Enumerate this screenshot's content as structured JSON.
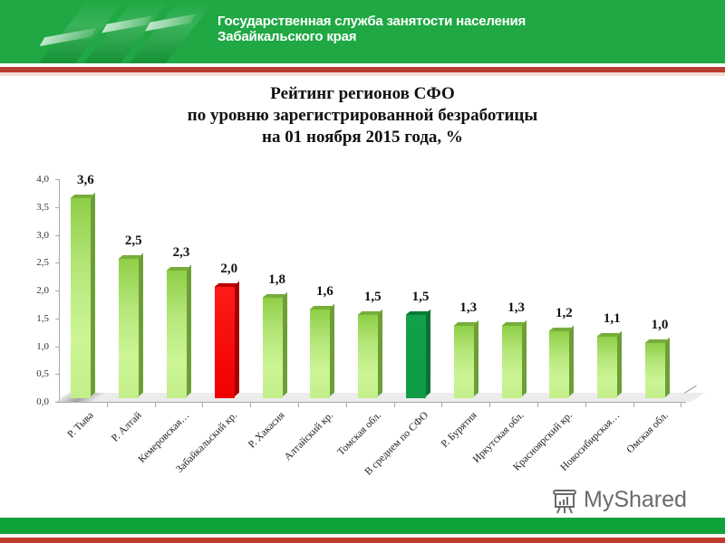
{
  "header": {
    "org_line1": "Государственная служба занятости населения",
    "org_line2": "Забайкальского края",
    "colors": {
      "green": "#1fa843",
      "red": "#b73c32",
      "white": "#ffffff"
    }
  },
  "title": {
    "line1": "Рейтинг регионов СФО",
    "line2": "по уровню зарегистрированной безработицы",
    "line3": "на 01 ноября 2015 года, %"
  },
  "chart_data": {
    "type": "bar",
    "title": "Рейтинг регионов СФО по уровню зарегистрированной безработицы на 01 ноября 2015 года, %",
    "xlabel": "",
    "ylabel": "",
    "ylim": [
      0,
      4.0
    ],
    "y_ticks": [
      "0,0",
      "0,5",
      "1,0",
      "1,5",
      "2,0",
      "2,5",
      "3,0",
      "3,5",
      "4,0"
    ],
    "grid": false,
    "legend": null,
    "categories": [
      "Р. Тыва",
      "Р. Алтай",
      "Кемеровская…",
      "Забайкальский кр.",
      "Р. Хакасия",
      "Алтайский кр.",
      "Томская обл.",
      "В среднем по СФО",
      "Р. Бурятия",
      "Иркутская обл.",
      "Красноярский кр.",
      "Новосибирская…",
      "Омская обл."
    ],
    "values": [
      3.6,
      2.5,
      2.3,
      2.0,
      1.8,
      1.6,
      1.5,
      1.5,
      1.3,
      1.3,
      1.2,
      1.1,
      1.0
    ],
    "value_labels": [
      "3,6",
      "2,5",
      "2,3",
      "2,0",
      "1,8",
      "1,6",
      "1,5",
      "1,5",
      "1,3",
      "1,3",
      "1,2",
      "1,1",
      "1,0"
    ],
    "bar_colors": [
      "#b5e67a",
      "#b5e67a",
      "#b5e67a",
      "#ee0000",
      "#b5e67a",
      "#b5e67a",
      "#b5e67a",
      "#0f9a45",
      "#b5e67a",
      "#b5e67a",
      "#b5e67a",
      "#b5e67a",
      "#b5e67a"
    ],
    "highlighted": {
      "Забайкальский кр.": "red",
      "В среднем по СФО": "dark-green"
    }
  },
  "watermark": {
    "text": "MyShared",
    "icon": "presentation-chart-icon"
  }
}
